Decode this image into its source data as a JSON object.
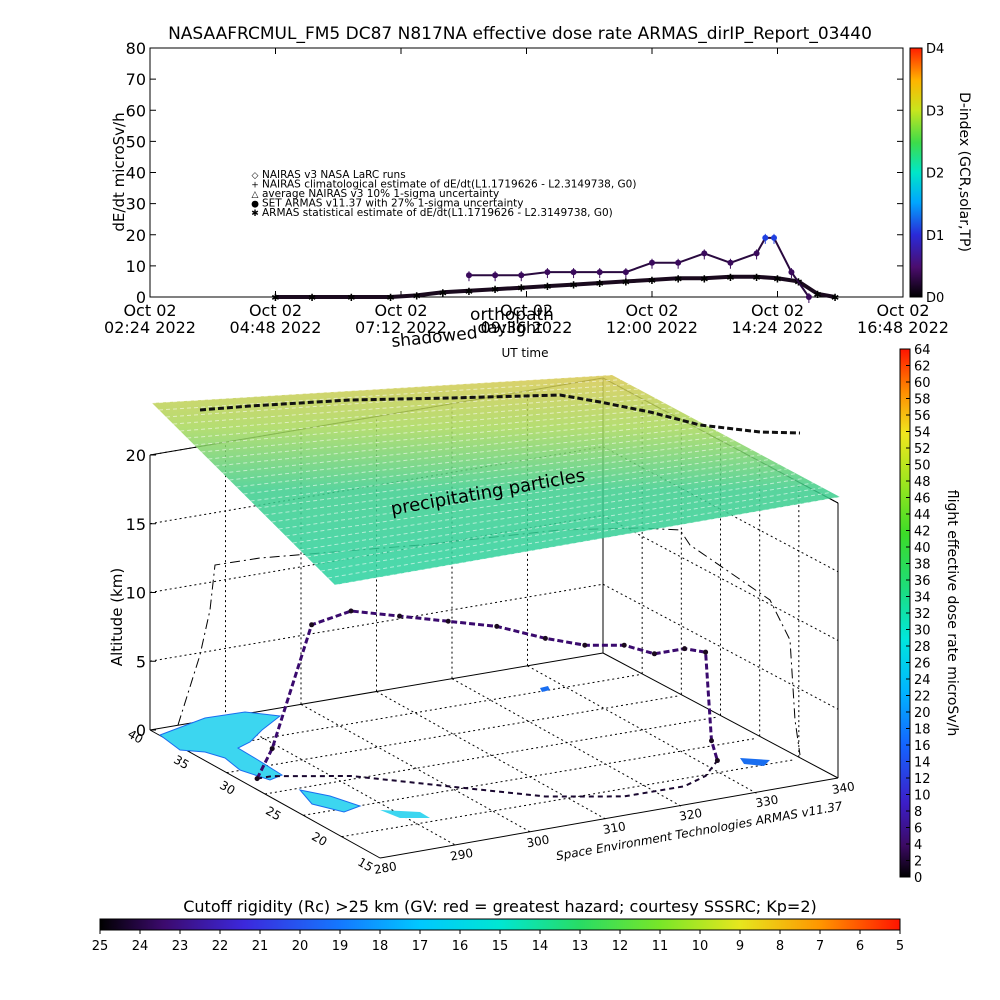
{
  "figure": {
    "title": "NASAAFRCMUL_FM5 DC87 N817NA effective dose rate ARMAS_dirIP_Report_03440",
    "credit": "Space Environment Technologies ARMAS v11.37",
    "rc_caption": "Cutoff rigidity (Rc) >25 km (GV: red = greatest hazard; courtesy SSSRC; Kp=2)",
    "shadowed_label": "shadowed",
    "orthopath_label": "orthopath",
    "daylight_label": "daylight",
    "precip_label": "precipitating particles",
    "ut_label": "UT time",
    "altitude_label": "Altitude (km)"
  },
  "chart_data": [
    {
      "type": "scatter",
      "title": "NASAAFRCMUL_FM5 DC87 N817NA effective dose rate ARMAS_dirIP_Report_03440",
      "xlabel": "UT time",
      "ylabel": "dE/dt microSv/h",
      "ylim": [
        0,
        80
      ],
      "yticks": [
        "0",
        "10",
        "20",
        "30",
        "40",
        "50",
        "60",
        "70",
        "80"
      ],
      "xticks": [
        {
          "date": "Oct 02",
          "time": "02:24 2022"
        },
        {
          "date": "Oct 02",
          "time": "04:48 2022"
        },
        {
          "date": "Oct 02",
          "time": "07:12 2022"
        },
        {
          "date": "Oct 02",
          "time": "09:36 2022"
        },
        {
          "date": "Oct 02",
          "time": "12:00 2022"
        },
        {
          "date": "Oct 02",
          "time": "14:24 2022"
        },
        {
          "date": "Oct 02",
          "time": "16:48 2022"
        }
      ],
      "legend": [
        {
          "symbol": "◇",
          "label": "NAIRAS v3 NASA LaRC runs"
        },
        {
          "symbol": "+",
          "label": "NAIRAS climatological estimate of dE/dt(L1.1719626 - L2.3149738, G0)"
        },
        {
          "symbol": "△",
          "label": "average NAIRAS v3 10% 1-sigma uncertainty"
        },
        {
          "symbol": "●",
          "label": "SET ARMAS v11.37 with 27% 1-sigma uncertainty"
        },
        {
          "symbol": "✱",
          "label": "ARMAS statistical estimate of dE/dt(L1.1719626 - L2.3149738, G0)"
        }
      ],
      "legend_placement": "upper-left",
      "series": [
        {
          "name": "ARMAS statistical estimate of dE/dt(L1.1719626 - L2.3149738, G0)",
          "x": [
            "04:48",
            "05:30",
            "06:15",
            "07:00",
            "07:30",
            "08:00",
            "08:30",
            "09:00",
            "09:30",
            "10:00",
            "10:30",
            "11:00",
            "11:30",
            "12:00",
            "12:30",
            "13:00",
            "13:30",
            "14:00",
            "14:24",
            "14:48",
            "15:10",
            "15:30"
          ],
          "y": [
            0,
            0,
            0,
            0,
            0.5,
            1.5,
            2,
            2.5,
            3,
            3.5,
            4,
            4.5,
            5,
            5.5,
            6,
            6,
            6.5,
            6.5,
            6,
            5,
            1,
            0
          ]
        },
        {
          "name": "SET ARMAS v11.37 with 27% 1-sigma uncertainty",
          "x": [
            "08:30",
            "09:00",
            "09:30",
            "10:00",
            "10:30",
            "11:00",
            "11:30",
            "12:00",
            "12:30",
            "13:00",
            "13:30",
            "14:00",
            "14:10",
            "14:20",
            "14:40",
            "15:00"
          ],
          "y": [
            7,
            7,
            7,
            8,
            8,
            8,
            8,
            11,
            11,
            14,
            11,
            14,
            19,
            19,
            8,
            0
          ]
        }
      ],
      "colorbar": {
        "title": "D-index (GCR,solar,TP)",
        "ticks": [
          "D0",
          "D1",
          "D2",
          "D3",
          "D4"
        ]
      }
    },
    {
      "type": "scatter",
      "title": "",
      "xlabel": "",
      "ylabel": "Altitude (km)",
      "zlim": [
        0,
        20
      ],
      "zticks": [
        "0",
        "5",
        "10",
        "15",
        "20"
      ],
      "lat_ticks": [
        "40",
        "35",
        "30",
        "25",
        "20",
        "15"
      ],
      "lon_ticks": [
        "280",
        "290",
        "300",
        "310",
        "320",
        "330",
        "340"
      ],
      "series": [
        {
          "name": "flight path",
          "lon": [
            282,
            284,
            288,
            292,
            296,
            300,
            304,
            308,
            312,
            316,
            320,
            324,
            328,
            330,
            332
          ],
          "lat": [
            30,
            30,
            29,
            28,
            26,
            24,
            22,
            20,
            19,
            18,
            18,
            18,
            19,
            20,
            21
          ],
          "alt": [
            0,
            2,
            11,
            12,
            12,
            12,
            12,
            11.5,
            11,
            11,
            10,
            10,
            9,
            2,
            0
          ]
        }
      ],
      "colorbar": {
        "title": "flight effective dose rate microSv/h",
        "ticks": [
          "0",
          "2",
          "4",
          "6",
          "8",
          "10",
          "12",
          "14",
          "16",
          "18",
          "20",
          "22",
          "24",
          "26",
          "28",
          "30",
          "32",
          "34",
          "36",
          "38",
          "40",
          "42",
          "44",
          "46",
          "48",
          "50",
          "52",
          "54",
          "56",
          "58",
          "60",
          "62",
          "64"
        ]
      }
    },
    {
      "type": "heatmap",
      "title": "Cutoff rigidity (Rc) >25 km (GV: red = greatest hazard; courtesy SSSRC; Kp=2)",
      "colorbar": {
        "ticks": [
          "25",
          "24",
          "23",
          "22",
          "21",
          "20",
          "19",
          "18",
          "17",
          "16",
          "15",
          "14",
          "13",
          "12",
          "11",
          "10",
          "9",
          "8",
          "7",
          "6",
          "5"
        ]
      }
    }
  ]
}
